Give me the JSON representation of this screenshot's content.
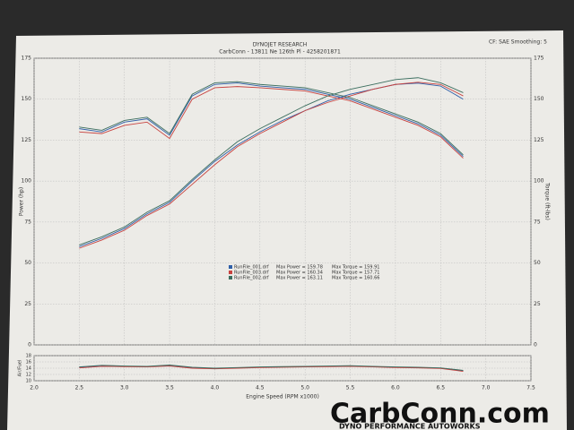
{
  "chart_data": {
    "type": "line",
    "title": "DYNOJET RESEARCH",
    "subtitle": "CarbConn - 13811 Ne 126th Pl - 4258201871",
    "settings_note": "CF: SAE Smoothing: 5",
    "xlabel": "Engine Speed (RPM x1000)",
    "ylabel": "Power (hp)",
    "y2label": "Torque (ft-lbs)",
    "afr_label": "Air/Fuel",
    "xlim": [
      2,
      7.5
    ],
    "xticks": [
      {
        "value": 2,
        "label": "2.0"
      },
      2.5,
      {
        "value": 3,
        "label": "3.0"
      },
      3.5,
      {
        "value": 4,
        "label": "4.0"
      },
      4.5,
      {
        "value": 5,
        "label": "5.0"
      },
      5.5,
      {
        "value": 6,
        "label": "6.0"
      },
      6.5,
      {
        "value": 7,
        "label": "7.0"
      },
      7.5
    ],
    "ylim": [
      0,
      175
    ],
    "yticks": [
      0,
      25,
      50,
      75,
      100,
      125,
      150,
      175
    ],
    "y2lim": [
      0,
      175
    ],
    "y2ticks": [
      0,
      25,
      50,
      75,
      100,
      125,
      150,
      175
    ],
    "afr_lim": [
      10,
      18
    ],
    "afr_ticks": [
      10,
      12,
      14,
      16,
      18
    ],
    "grid": true,
    "x": [
      2.5,
      2.75,
      3.0,
      3.25,
      3.5,
      3.75,
      4.0,
      4.25,
      4.5,
      4.75,
      5.0,
      5.25,
      5.5,
      5.75,
      6.0,
      6.25,
      6.5,
      6.75
    ],
    "runs": [
      {
        "name": "RunFile_001.drf",
        "color": "#2f5fa8",
        "legend_power": "Max Power = 159.78",
        "legend_torque": "Max Torque = 159.91",
        "power": [
          60,
          65,
          71,
          80,
          87,
          100,
          112,
          122,
          130,
          137,
          143,
          149,
          153,
          156,
          159,
          159.78,
          158,
          150
        ],
        "torque": [
          132,
          130,
          136,
          138,
          128,
          152,
          159,
          159.91,
          158,
          157,
          156,
          153,
          150,
          145,
          140,
          135,
          128,
          115
        ],
        "afr": [
          14.3,
          14.8,
          14.6,
          14.5,
          14.9,
          14.2,
          13.9,
          14.1,
          14.3,
          14.4,
          14.5,
          14.6,
          14.7,
          14.5,
          14.3,
          14.2,
          14.0,
          13.2
        ]
      },
      {
        "name": "RunFile_003.drf",
        "color": "#c8423f",
        "legend_power": "Max Power = 160.34",
        "legend_torque": "Max Torque = 157.71",
        "power": [
          59,
          64,
          70,
          79,
          86,
          98,
          110,
          121,
          129,
          136,
          143,
          148,
          152,
          156,
          159,
          160.34,
          159,
          152
        ],
        "torque": [
          130,
          129,
          134,
          136,
          126,
          150,
          157,
          157.71,
          157,
          156,
          155,
          152,
          149,
          144,
          139,
          134,
          127,
          114
        ],
        "afr": [
          14.1,
          14.6,
          14.5,
          14.4,
          14.7,
          14.0,
          13.8,
          14.0,
          14.2,
          14.3,
          14.4,
          14.5,
          14.6,
          14.4,
          14.2,
          14.1,
          13.9,
          13.0
        ]
      },
      {
        "name": "RunFile_002.drf",
        "color": "#3b6e5f",
        "legend_power": "Max Power = 163.11",
        "legend_torque": "Max Torque = 160.66",
        "power": [
          61,
          66,
          72,
          81,
          88,
          101,
          113,
          124,
          132,
          139,
          146,
          152,
          156,
          159,
          162,
          163.11,
          160,
          154
        ],
        "torque": [
          133,
          131,
          137,
          139,
          129,
          153,
          160,
          160.66,
          159,
          158,
          157,
          154,
          151,
          146,
          141,
          136,
          129,
          116
        ],
        "afr": [
          14.4,
          14.9,
          14.7,
          14.6,
          15.0,
          14.3,
          14.0,
          14.2,
          14.4,
          14.5,
          14.6,
          14.7,
          14.8,
          14.6,
          14.4,
          14.3,
          14.1,
          13.3
        ]
      }
    ],
    "logo": "CarbConn.com",
    "tagline": "DYNO PERFORMANCE AUTOWORKS"
  }
}
